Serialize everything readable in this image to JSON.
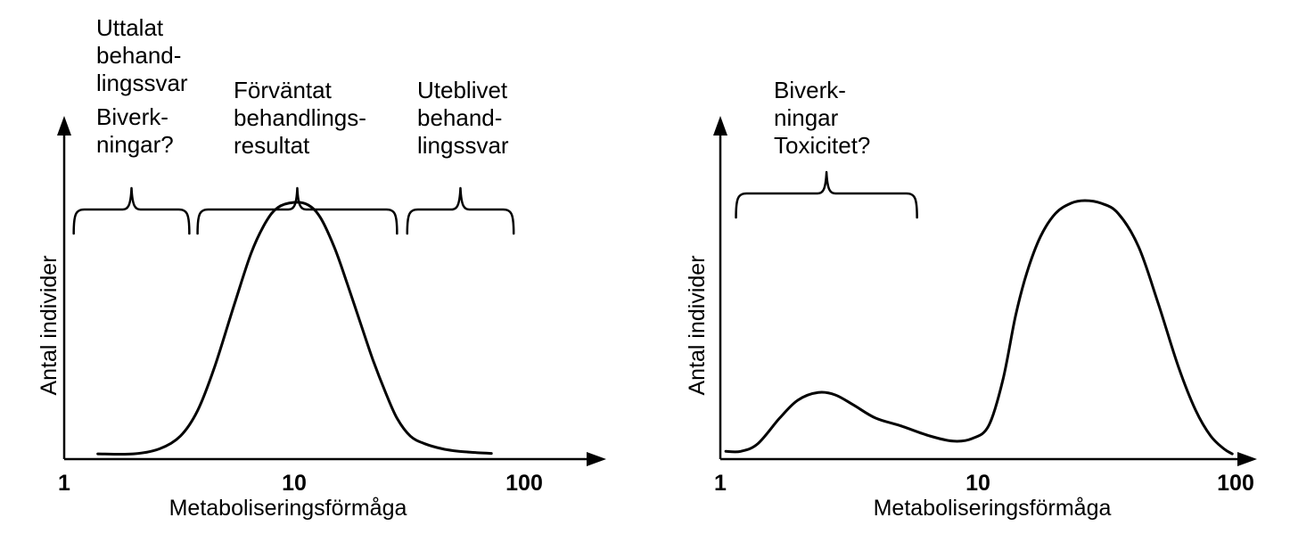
{
  "chart_data": [
    {
      "type": "line",
      "xscale": "log",
      "xlim": [
        1,
        200
      ],
      "xticks": [
        "1",
        "10",
        "100"
      ],
      "xlabel": "Metaboliseringsförmåga",
      "ylabel": "Antal individer",
      "grid": false,
      "series": [
        {
          "x": [
            1.4,
            2.0,
            2.6,
            3.2,
            3.8,
            4.5,
            5.5,
            6.5,
            7.5,
            8.5,
            10,
            11.5,
            13,
            15,
            17,
            19.5,
            22,
            25,
            28,
            32,
            37,
            44,
            52,
            62,
            72
          ],
          "y": [
            0.01,
            0.01,
            0.03,
            0.08,
            0.18,
            0.35,
            0.6,
            0.8,
            0.92,
            0.98,
            1.0,
            0.99,
            0.94,
            0.82,
            0.68,
            0.52,
            0.38,
            0.25,
            0.15,
            0.08,
            0.05,
            0.03,
            0.02,
            0.015,
            0.012
          ]
        }
      ],
      "annotations": [
        {
          "lines": [
            "Uttalat",
            "behand-",
            "lingssvar"
          ]
        },
        {
          "lines": [
            "Biverk-",
            "ningar?"
          ]
        },
        {
          "lines": [
            "Förväntat",
            "behandlings-",
            "resultat"
          ]
        },
        {
          "lines": [
            "Uteblivet",
            "behand-",
            "lingssvar"
          ]
        }
      ],
      "braces": [
        {
          "from": 1.1,
          "to": 3.5
        },
        {
          "from": 3.8,
          "to": 28
        },
        {
          "from": 31,
          "to": 90
        }
      ]
    },
    {
      "type": "line",
      "xscale": "log",
      "xlim": [
        1,
        100
      ],
      "xticks": [
        "1",
        "10",
        "100"
      ],
      "xlabel": "Metaboliseringsförmåga",
      "ylabel": "Antal individer",
      "grid": false,
      "series": [
        {
          "x": [
            1.05,
            1.2,
            1.4,
            1.7,
            2.0,
            2.4,
            2.8,
            3.3,
            4.0,
            5.0,
            6.5,
            8.0,
            9.5,
            11,
            12.5,
            14,
            15.5,
            17.5,
            20,
            23,
            26,
            30,
            35,
            42,
            50,
            60,
            70,
            80,
            90,
            97
          ],
          "y": [
            0.02,
            0.02,
            0.05,
            0.15,
            0.22,
            0.25,
            0.24,
            0.2,
            0.15,
            0.12,
            0.08,
            0.06,
            0.07,
            0.12,
            0.3,
            0.55,
            0.72,
            0.86,
            0.95,
            0.99,
            1.0,
            0.99,
            0.95,
            0.82,
            0.6,
            0.35,
            0.18,
            0.08,
            0.03,
            0.01
          ]
        }
      ],
      "annotations": [
        {
          "lines": [
            "Biverk-",
            "ningar",
            "Toxicitet?"
          ]
        }
      ],
      "braces": [
        {
          "from": 1.15,
          "to": 5.8
        }
      ]
    }
  ]
}
